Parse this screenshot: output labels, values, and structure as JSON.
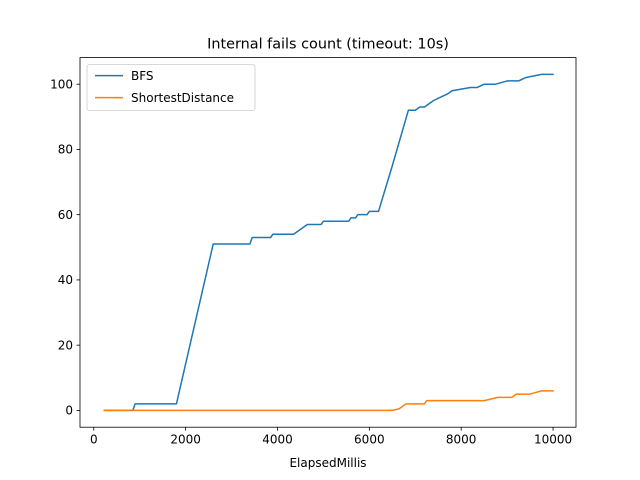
{
  "chart_data": {
    "type": "line",
    "title": "Internal fails count (timeout: 10s)",
    "xlabel": "ElapsedMillis",
    "ylabel": "",
    "xlim": [
      -300,
      10500
    ],
    "ylim": [
      -5.15,
      108.15
    ],
    "xticks": [
      0,
      2000,
      4000,
      6000,
      8000,
      10000
    ],
    "yticks": [
      0,
      20,
      40,
      60,
      80,
      100
    ],
    "grid": false,
    "legend_position": "top-left",
    "series": [
      {
        "name": "BFS",
        "color": "#1f77b4",
        "x": [
          230,
          850,
          900,
          1800,
          2600,
          3400,
          3450,
          3850,
          3900,
          4350,
          4450,
          4550,
          4650,
          4950,
          5000,
          5550,
          5600,
          5700,
          5750,
          5950,
          6000,
          6200,
          6500,
          6850,
          7000,
          7100,
          7200,
          7300,
          7400,
          7550,
          7700,
          7800,
          8200,
          8350,
          8500,
          8750,
          9000,
          9250,
          9400,
          9750,
          10000
        ],
        "y": [
          0,
          0,
          2,
          2,
          51,
          51,
          53,
          53,
          54,
          54,
          55,
          56,
          57,
          57,
          58,
          58,
          59,
          59,
          60,
          60,
          61,
          61,
          75,
          92,
          92,
          93,
          93,
          94,
          95,
          96,
          97,
          98,
          99,
          99,
          100,
          100,
          101,
          101,
          102,
          103,
          103
        ]
      },
      {
        "name": "ShortestDistance",
        "color": "#ff7f0e",
        "x": [
          230,
          6500,
          6650,
          6800,
          7200,
          7250,
          8500,
          8800,
          9100,
          9200,
          9500,
          9750,
          10000
        ],
        "y": [
          0,
          0,
          0.5,
          2,
          2,
          3,
          3,
          4,
          4,
          5,
          5,
          6,
          6
        ]
      }
    ]
  }
}
